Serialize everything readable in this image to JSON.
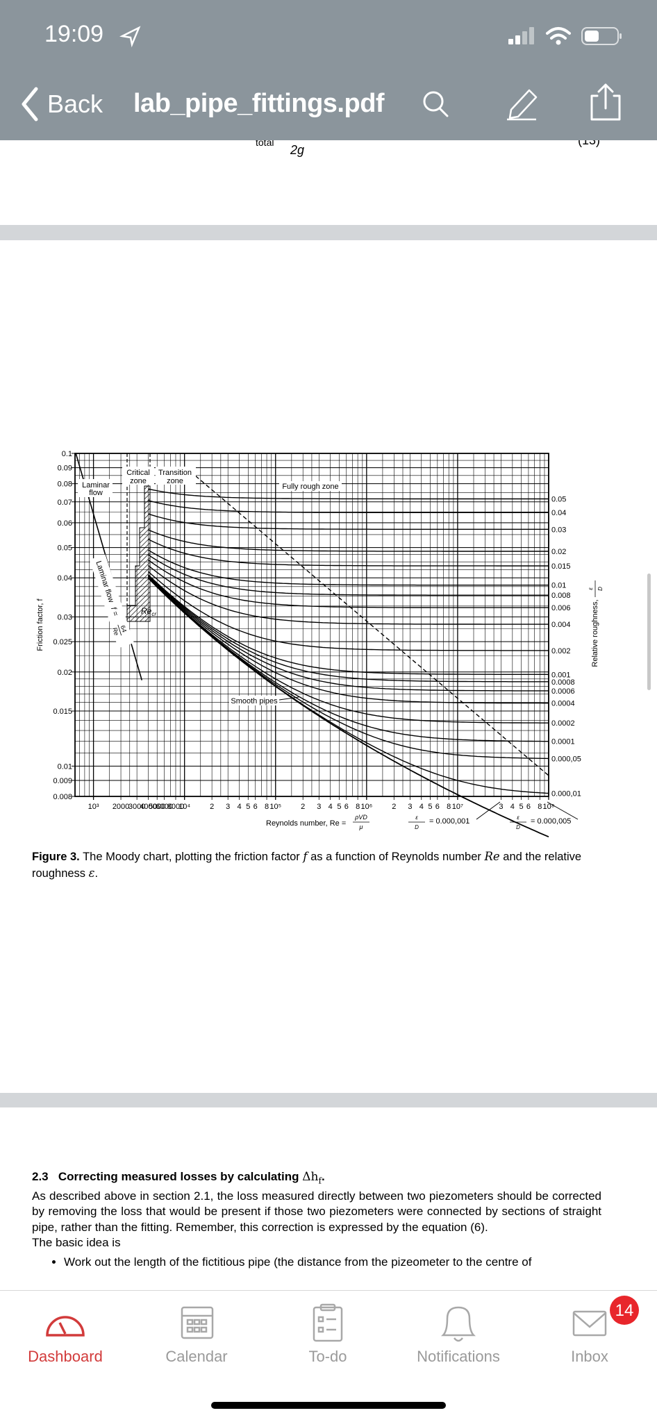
{
  "status_bar": {
    "time": "19:09"
  },
  "nav": {
    "back": "Back",
    "title": "lab_pipe_fittings.pdf"
  },
  "prev_page": {
    "subscript": "total",
    "denominator": "2g",
    "equation_number": "(13)"
  },
  "figure": {
    "y_axis_label": "Friction factor, f",
    "y_ticks": [
      0.1,
      0.09,
      0.08,
      0.07,
      0.06,
      0.05,
      0.04,
      0.03,
      0.025,
      0.02,
      0.015,
      0.01,
      0.009,
      0.008
    ],
    "x_ticks": [
      {
        "value": 1000,
        "label": "10³"
      },
      2000,
      3000,
      4000,
      5000,
      6000,
      8000,
      {
        "value": 10000,
        "label": "10⁴"
      },
      {
        "value": 20000,
        "label": "2"
      },
      {
        "value": 30000,
        "label": "3"
      },
      {
        "value": 40000,
        "label": "4"
      },
      {
        "value": 50000,
        "label": "5"
      },
      {
        "value": 60000,
        "label": "6"
      },
      {
        "value": 80000,
        "label": "8"
      },
      {
        "value": 100000,
        "label": "10⁵"
      },
      {
        "value": 200000,
        "label": "2"
      },
      {
        "value": 300000,
        "label": "3"
      },
      {
        "value": 400000,
        "label": "4"
      },
      {
        "value": 500000,
        "label": "5"
      },
      {
        "value": 600000,
        "label": "6"
      },
      {
        "value": 800000,
        "label": "8"
      },
      {
        "value": 1000000,
        "label": "10⁶"
      },
      {
        "value": 2000000,
        "label": "2"
      },
      {
        "value": 3000000,
        "label": "3"
      },
      {
        "value": 4000000,
        "label": "4"
      },
      {
        "value": 5000000,
        "label": "5"
      },
      {
        "value": 6000000,
        "label": "6"
      },
      {
        "value": 8000000,
        "label": "8"
      },
      {
        "value": 10000000,
        "label": "10⁷"
      },
      {
        "value": 30000000,
        "label": "3"
      },
      {
        "value": 40000000,
        "label": "4"
      },
      {
        "value": 50000000,
        "label": "5"
      },
      {
        "value": 60000000,
        "label": "6"
      },
      {
        "value": 80000000,
        "label": "8"
      },
      {
        "value": 100000000,
        "label": "10⁸"
      }
    ],
    "x_axis_label": "Reynolds number, Re =",
    "x_axis_formula": {
      "num": "ρVD",
      "den": "μ"
    },
    "roughness_axis_label": "Relative roughness,",
    "roughness_symbol": {
      "num": "ε",
      "den": "D"
    },
    "roughness_ticks": [
      0.05,
      0.04,
      0.03,
      0.02,
      0.015,
      0.01,
      0.008,
      0.006,
      0.004,
      0.002,
      0.001,
      0.0008,
      0.0006,
      0.0004,
      0.0002,
      0.0001,
      {
        "value": 5e-05,
        "label": "0.000,05"
      },
      {
        "value": 1e-05,
        "label": "0.000,01"
      }
    ],
    "zones": {
      "laminar": [
        "Laminar",
        "flow"
      ],
      "critical": [
        "Critical",
        "zone"
      ],
      "transition": [
        "Transition",
        "zone"
      ],
      "fully_rough": "Fully rough zone",
      "smooth": "Smooth pipes",
      "critical_re": "Re",
      "critical_re_sub": "cr"
    },
    "laminar_line_label": {
      "text": "Laminar flow",
      "lhs": "f =",
      "num": "64",
      "den": "Re"
    },
    "annotations": [
      {
        "num": "ε",
        "den": "D",
        "text": "= 0.000,001"
      },
      {
        "num": "ε",
        "den": "D",
        "text": "= 0.000,005"
      }
    ]
  },
  "caption": {
    "label": "Figure 3.",
    "parts": [
      "The Moody chart, plotting the friction factor ",
      "f",
      " as a function of Reynolds number ",
      "Re",
      " and the relative roughness ",
      "ε",
      "."
    ]
  },
  "section": {
    "number": "2.3",
    "heading": "Correcting measured losses by calculating",
    "heading_math": "Δh",
    "heading_sub": "f",
    "heading_end": ".",
    "paragraph": "As described above in section 2.1, the loss measured directly between two piezometers should be corrected by removing the loss that would be present if those two piezometers were connected by sections of straight pipe, rather than the fitting. Remember, this correction is expressed by the equation (6).",
    "intro": "The basic idea is",
    "bullets": [
      "Work out the length of the fictitious pipe (the distance from the pizeometer to the centre of"
    ]
  },
  "tab_bar": {
    "items": [
      "Dashboard",
      "Calendar",
      "To-do",
      "Notifications",
      "Inbox"
    ],
    "badge": "14"
  }
}
